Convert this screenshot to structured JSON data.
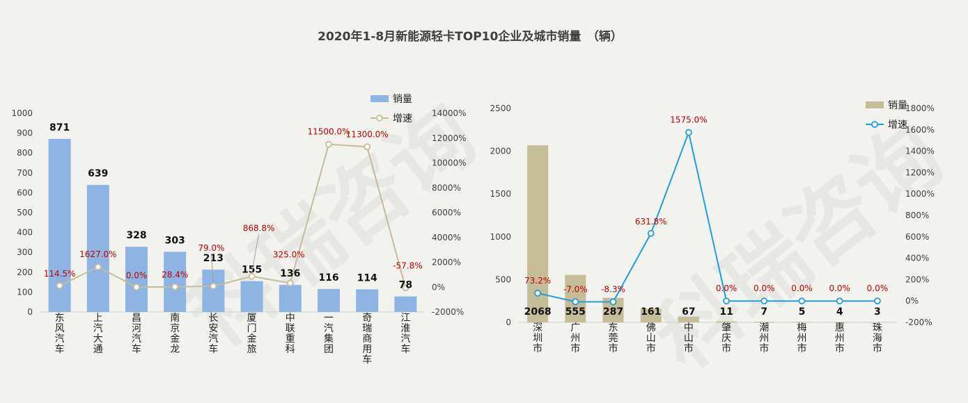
{
  "title": "2020年1-8月新能源轻卡TOP10企业及城市销量　（辆）",
  "watermark": "科瑞咨询",
  "chart_data": [
    {
      "type": "bar",
      "categories": [
        "东风汽车",
        "上汽大通",
        "昌河汽车",
        "南京金龙",
        "长安汽车",
        "厦门金旅",
        "中联重科",
        "一汽集团",
        "奇瑞商用车",
        "江淮汽车"
      ],
      "series": [
        {
          "name": "销量",
          "type": "bar",
          "axis": "left",
          "values": [
            871,
            639,
            328,
            303,
            213,
            155,
            136,
            116,
            114,
            78
          ],
          "labels": [
            "871",
            "639",
            "328",
            "303",
            "213",
            "155",
            "136",
            "116",
            "114",
            "78"
          ],
          "color": "#8eb4e3"
        },
        {
          "name": "增速",
          "type": "line",
          "axis": "right",
          "values": [
            114.5,
            1627.0,
            0.0,
            28.4,
            79.0,
            868.8,
            325.0,
            11500.0,
            11300.0,
            -57.8
          ],
          "labels": [
            "114.5%",
            "1627.0%",
            "0.0%",
            "28.4%",
            "79.0%",
            "868.8%",
            "325.0%",
            "11500.0%",
            "11300.0%",
            "-57.8%"
          ],
          "color": "#c4bd97"
        }
      ],
      "yleft": {
        "min": 0,
        "max": 1000,
        "ticks": [
          "0",
          "100",
          "200",
          "300",
          "400",
          "500",
          "600",
          "700",
          "800",
          "900",
          "1000"
        ]
      },
      "yright": {
        "min": -2000,
        "max": 14000,
        "ticks": [
          "-2000%",
          "0%",
          "2000%",
          "4000%",
          "6000%",
          "8000%",
          "10000%",
          "12000%",
          "14000%"
        ]
      },
      "legend": "top-right"
    },
    {
      "type": "bar",
      "categories": [
        "深圳市",
        "广州市",
        "东莞市",
        "佛山市",
        "中山市",
        "肇庆市",
        "潮州市",
        "梅州市",
        "惠州市",
        "珠海市"
      ],
      "series": [
        {
          "name": "销量",
          "type": "bar",
          "axis": "left",
          "values": [
            2068,
            555,
            287,
            161,
            67,
            11,
            7,
            5,
            4,
            3
          ],
          "labels": [
            "2068",
            "555",
            "287",
            "161",
            "67",
            "11",
            "7",
            "5",
            "4",
            "3"
          ],
          "color": "#c4bd97"
        },
        {
          "name": "增速",
          "type": "line",
          "axis": "right",
          "values": [
            73.2,
            -7.0,
            -8.3,
            631.8,
            1575.0,
            0.0,
            0.0,
            0.0,
            0.0,
            0.0
          ],
          "labels": [
            "73.2%",
            "-7.0%",
            "-8.3%",
            "631.8%",
            "1575.0%",
            "0.0%",
            "0.0%",
            "0.0%",
            "0.0%",
            "0.0%"
          ],
          "color": "#1f9ee0"
        }
      ],
      "yleft": {
        "min": 0,
        "max": 2500,
        "ticks": [
          "0",
          "500",
          "1000",
          "1500",
          "2000",
          "2500"
        ]
      },
      "yright": {
        "min": -200,
        "max": 1800,
        "ticks": [
          "-200%",
          "0%",
          "200%",
          "400%",
          "600%",
          "800%",
          "1000%",
          "1200%",
          "1400%",
          "1600%",
          "1800%"
        ]
      },
      "legend": "top-right"
    }
  ]
}
